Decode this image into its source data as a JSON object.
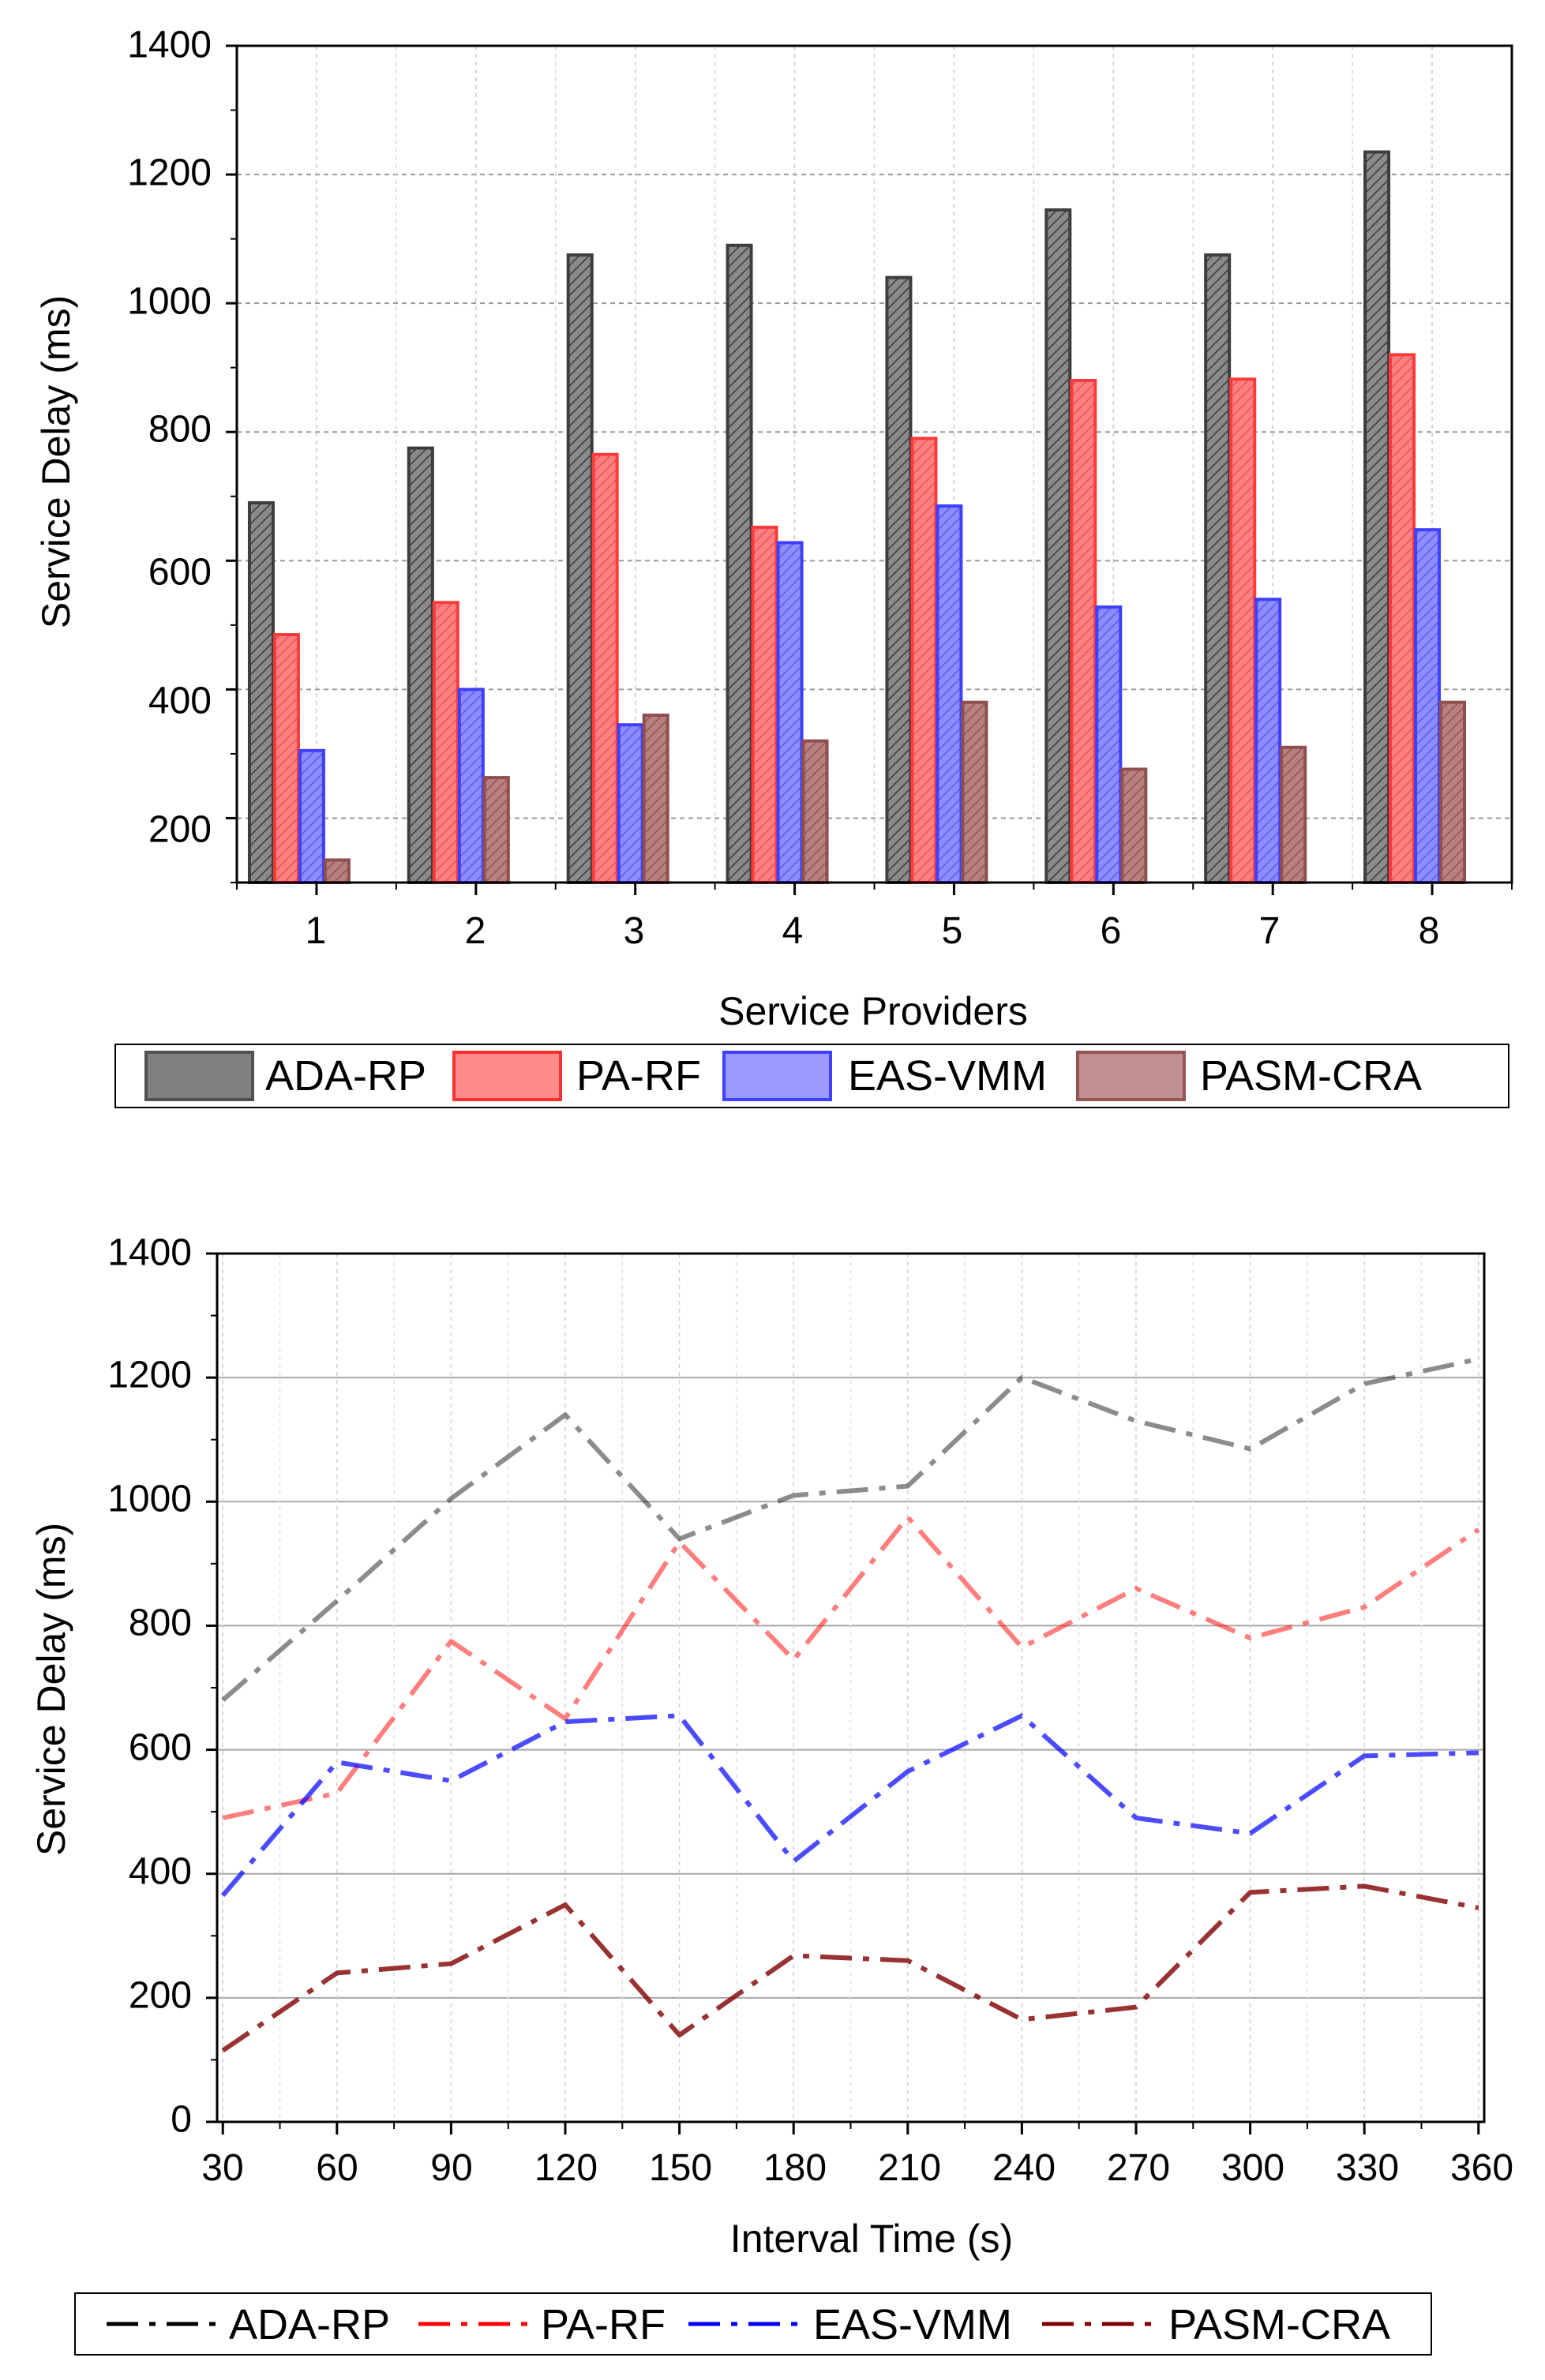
{
  "chart_data": [
    {
      "type": "bar",
      "title": "",
      "xlabel": "Service Providers",
      "ylabel": "Service Delay (ms)",
      "ylim": [
        100,
        1400
      ],
      "yticks": [
        "200",
        "400",
        "600",
        "800",
        "1000",
        "1200",
        "1400"
      ],
      "categories": [
        "1",
        "2",
        "3",
        "4",
        "5",
        "6",
        "7",
        "8"
      ],
      "grid": true,
      "legend_position": "bottom",
      "series": [
        {
          "name": "ADA-RP",
          "color": "#808080",
          "values": [
            690,
            775,
            1075,
            1090,
            1040,
            1145,
            1075,
            1235
          ]
        },
        {
          "name": "PA-RF",
          "color": "#ff6f6f",
          "values": [
            485,
            535,
            765,
            652,
            790,
            880,
            882,
            920
          ]
        },
        {
          "name": "EAS-VMM",
          "color": "#7f7fff",
          "values": [
            305,
            400,
            345,
            628,
            685,
            528,
            540,
            648
          ]
        },
        {
          "name": "PASM-CRA",
          "color": "#b46e6e",
          "values": [
            135,
            263,
            360,
            320,
            380,
            276,
            310,
            380
          ]
        }
      ]
    },
    {
      "type": "line",
      "title": "",
      "xlabel": "Interval Time (s)",
      "ylabel": "Service Delay (ms)",
      "ylim": [
        0,
        1400
      ],
      "xlim": [
        30,
        360
      ],
      "yticks": [
        "0",
        "200",
        "400",
        "600",
        "800",
        "1000",
        "1200",
        "1400"
      ],
      "xticks": [
        "30",
        "60",
        "90",
        "120",
        "150",
        "180",
        "210",
        "240",
        "270",
        "300",
        "330",
        "360"
      ],
      "x": [
        30,
        60,
        90,
        120,
        150,
        180,
        210,
        240,
        270,
        300,
        330,
        360
      ],
      "grid": true,
      "legend_position": "bottom",
      "series": [
        {
          "name": "ADA-RP",
          "color": "#000000",
          "values": [
            680,
            840,
            1005,
            1140,
            940,
            1010,
            1025,
            1200,
            1130,
            1085,
            1190,
            1230
          ]
        },
        {
          "name": "PA-RF",
          "color": "#ff0000",
          "values": [
            490,
            530,
            775,
            650,
            935,
            745,
            975,
            765,
            860,
            780,
            830,
            955
          ]
        },
        {
          "name": "EAS-VMM",
          "color": "#0000ff",
          "values": [
            365,
            580,
            550,
            645,
            655,
            420,
            565,
            655,
            490,
            465,
            590,
            595
          ]
        },
        {
          "name": "PASM-CRA",
          "color": "#7f0000",
          "values": [
            115,
            240,
            255,
            350,
            140,
            268,
            260,
            165,
            185,
            370,
            380,
            345
          ]
        }
      ]
    }
  ]
}
